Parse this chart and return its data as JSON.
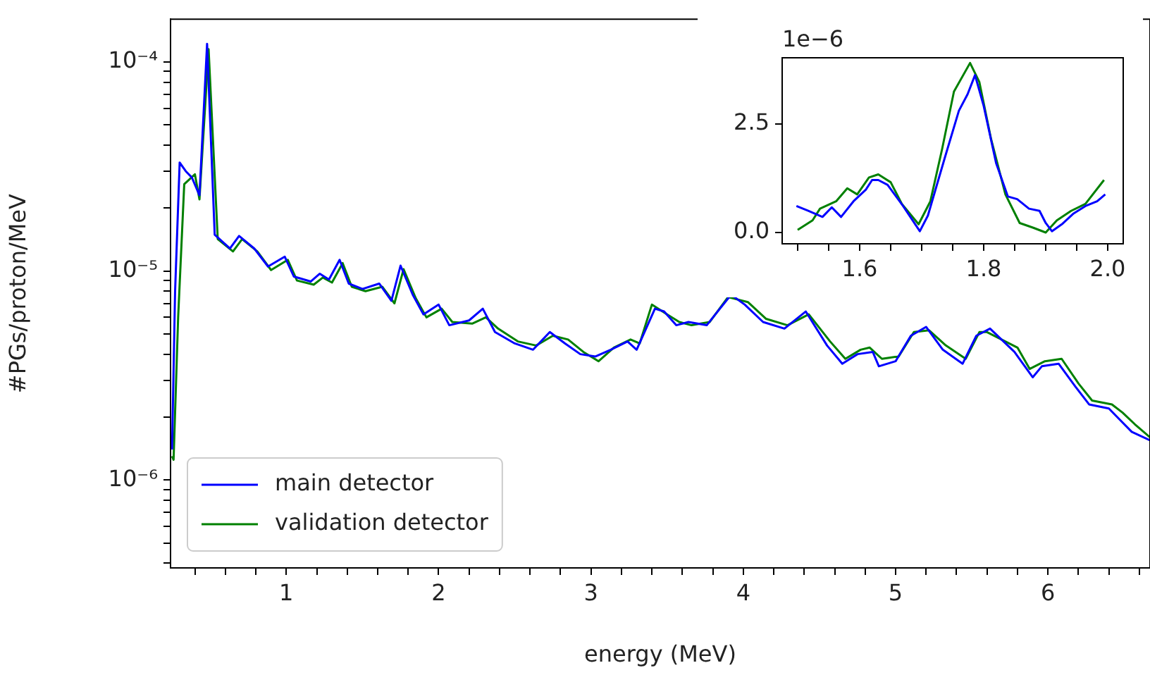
{
  "chart_data": [
    {
      "type": "line",
      "xlabel": "energy (MeV)",
      "ylabel": "#PGs/proton/MeV",
      "log": "y",
      "legend": "bottom left",
      "xlim": [
        0.24,
        6.67
      ],
      "ylim": [
        3.8e-07,
        0.00016
      ],
      "xticks": [
        {
          "value": 0.4,
          "label": null
        },
        {
          "value": 0.6,
          "label": null
        },
        {
          "value": 0.8,
          "label": null
        },
        1,
        {
          "value": 1.2,
          "label": null
        },
        {
          "value": 1.4,
          "label": null
        },
        {
          "value": 1.6,
          "label": null
        },
        {
          "value": 1.8,
          "label": null
        },
        2,
        {
          "value": 2.2,
          "label": null
        },
        {
          "value": 2.4,
          "label": null
        },
        {
          "value": 2.6,
          "label": null
        },
        {
          "value": 2.8,
          "label": null
        },
        3,
        {
          "value": 3.2,
          "label": null
        },
        {
          "value": 3.4,
          "label": null
        },
        {
          "value": 3.6,
          "label": null
        },
        {
          "value": 3.8,
          "label": null
        },
        4,
        {
          "value": 4.2,
          "label": null
        },
        {
          "value": 4.4,
          "label": null
        },
        {
          "value": 4.6,
          "label": null
        },
        {
          "value": 4.8,
          "label": null
        },
        5,
        {
          "value": 5.2,
          "label": null
        },
        {
          "value": 5.4,
          "label": null
        },
        {
          "value": 5.6,
          "label": null
        },
        {
          "value": 5.8,
          "label": null
        },
        6,
        {
          "value": 6.2,
          "label": null
        },
        {
          "value": 6.4,
          "label": null
        },
        {
          "value": 6.6,
          "label": null
        }
      ],
      "yticks": [
        {
          "value": 4e-07,
          "label": null
        },
        {
          "value": 5e-07,
          "label": null
        },
        {
          "value": 6e-07,
          "label": null
        },
        {
          "value": 7e-07,
          "label": null
        },
        {
          "value": 8e-07,
          "label": null
        },
        {
          "value": 9e-07,
          "label": null
        },
        {
          "value": 1e-06,
          "label": "10⁻⁶"
        },
        {
          "value": 2e-06,
          "label": null
        },
        {
          "value": 3e-06,
          "label": null
        },
        {
          "value": 4e-06,
          "label": null
        },
        {
          "value": 5e-06,
          "label": null
        },
        {
          "value": 6e-06,
          "label": null
        },
        {
          "value": 7e-06,
          "label": null
        },
        {
          "value": 8e-06,
          "label": null
        },
        {
          "value": 9e-06,
          "label": null
        },
        {
          "value": 1e-05,
          "label": "10⁻⁵"
        },
        {
          "value": 2e-05,
          "label": null
        },
        {
          "value": 3e-05,
          "label": null
        },
        {
          "value": 4e-05,
          "label": null
        },
        {
          "value": 5e-05,
          "label": null
        },
        {
          "value": 6e-05,
          "label": null
        },
        {
          "value": 7e-05,
          "label": null
        },
        {
          "value": 8e-05,
          "label": null
        },
        {
          "value": 9e-05,
          "label": null
        },
        {
          "value": 0.0001,
          "label": "10⁻⁴"
        }
      ],
      "series": [
        {
          "name": "main detector",
          "color": "#0000ff",
          "x": [
            0.25,
            0.27,
            0.3,
            0.34,
            0.38,
            0.43,
            0.48,
            0.53,
            0.63,
            0.69,
            0.79,
            0.88,
            0.99,
            1.05,
            1.16,
            1.22,
            1.28,
            1.35,
            1.41,
            1.5,
            1.61,
            1.69,
            1.75,
            1.83,
            1.9,
            2.0,
            2.07,
            2.2,
            2.29,
            2.37,
            2.5,
            2.62,
            2.73,
            2.83,
            2.93,
            3.03,
            3.13,
            3.24,
            3.3,
            3.42,
            3.48,
            3.56,
            3.64,
            3.76,
            3.92,
            4.01,
            4.13,
            4.27,
            4.41,
            4.55,
            4.65,
            4.75,
            4.85,
            4.89,
            5.0,
            5.1,
            5.2,
            5.31,
            5.44,
            5.53,
            5.62,
            5.78,
            5.9,
            5.96,
            6.07,
            6.18,
            6.27,
            6.4,
            6.47,
            6.55,
            6.67
          ],
          "values": [
            1.4e-06,
            8e-06,
            3.3e-05,
            3e-05,
            2.8e-05,
            2.3e-05,
            0.000122,
            1.49e-05,
            1.28e-05,
            1.47e-05,
            1.28e-05,
            1.05e-05,
            1.17e-05,
            9.4e-06,
            8.9e-06,
            9.7e-06,
            9.1e-06,
            1.13e-05,
            8.7e-06,
            8.2e-06,
            8.7e-06,
            7.2e-06,
            1.06e-05,
            7.7e-06,
            6.2e-06,
            6.9e-06,
            5.5e-06,
            5.8e-06,
            6.6e-06,
            5.1e-06,
            4.5e-06,
            4.2e-06,
            5.1e-06,
            4.5e-06,
            4e-06,
            3.9e-06,
            4.2e-06,
            4.6e-06,
            4.2e-06,
            6.6e-06,
            6.4e-06,
            5.5e-06,
            5.7e-06,
            5.5e-06,
            7.7e-06,
            6.9e-06,
            5.7e-06,
            5.3e-06,
            6.4e-06,
            4.4e-06,
            3.6e-06,
            4e-06,
            4.1e-06,
            3.5e-06,
            3.7e-06,
            4.9e-06,
            5.4e-06,
            4.2e-06,
            3.6e-06,
            4.9e-06,
            5.3e-06,
            4.1e-06,
            3.1e-06,
            3.5e-06,
            3.6e-06,
            2.8e-06,
            2.3e-06,
            2.2e-06,
            1.95e-06,
            1.7e-06,
            1.55e-06
          ]
        },
        {
          "name": "validation detector",
          "color": "#008000",
          "x": [
            0.25,
            0.26,
            0.29,
            0.33,
            0.4,
            0.43,
            0.49,
            0.55,
            0.65,
            0.71,
            0.81,
            0.9,
            1.01,
            1.07,
            1.18,
            1.24,
            1.3,
            1.37,
            1.43,
            1.52,
            1.63,
            1.71,
            1.77,
            1.85,
            1.92,
            2.02,
            2.09,
            2.22,
            2.31,
            2.39,
            2.52,
            2.64,
            2.75,
            2.85,
            2.95,
            3.05,
            3.15,
            3.26,
            3.32,
            3.4,
            3.5,
            3.58,
            3.66,
            3.78,
            3.9,
            4.03,
            4.15,
            4.29,
            4.43,
            4.57,
            4.67,
            4.77,
            4.83,
            4.91,
            5.02,
            5.12,
            5.22,
            5.33,
            5.46,
            5.55,
            5.6,
            5.8,
            5.88,
            5.98,
            6.09,
            6.2,
            6.29,
            6.42,
            6.49,
            6.57,
            6.67
          ],
          "values": [
            1.3e-06,
            1.25e-06,
            6e-06,
            2.6e-05,
            2.9e-05,
            2.2e-05,
            0.000115,
            1.42e-05,
            1.24e-05,
            1.42e-05,
            1.24e-05,
            1.01e-05,
            1.13e-05,
            9e-06,
            8.6e-06,
            9.3e-06,
            8.8e-06,
            1.09e-05,
            8.4e-06,
            8e-06,
            8.4e-06,
            7e-06,
            1.02e-05,
            7.4e-06,
            6e-06,
            6.6e-06,
            5.7e-06,
            5.6e-06,
            6e-06,
            5.3e-06,
            4.6e-06,
            4.4e-06,
            4.9e-06,
            4.7e-06,
            4.1e-06,
            3.7e-06,
            4.3e-06,
            4.7e-06,
            4.5e-06,
            6.9e-06,
            6.2e-06,
            5.7e-06,
            5.5e-06,
            5.7e-06,
            7.5e-06,
            7.1e-06,
            5.9e-06,
            5.5e-06,
            6.2e-06,
            4.6e-06,
            3.8e-06,
            4.2e-06,
            4.3e-06,
            3.8e-06,
            3.9e-06,
            5.1e-06,
            5.2e-06,
            4.4e-06,
            3.8e-06,
            5.1e-06,
            5.1e-06,
            4.3e-06,
            3.4e-06,
            3.7e-06,
            3.8e-06,
            2.9e-06,
            2.4e-06,
            2.3e-06,
            2.1e-06,
            1.85e-06,
            1.6e-06
          ]
        }
      ]
    },
    {
      "type": "line",
      "annotations": [
        "1e−6"
      ],
      "xlim": [
        1.475,
        2.025
      ],
      "ylim": [
        -0.26,
        4.03
      ],
      "xticks": [
        {
          "value": 1.5,
          "label": null
        },
        {
          "value": 1.55,
          "label": null
        },
        1.6,
        {
          "value": 1.65,
          "label": null
        },
        {
          "value": 1.7,
          "label": null
        },
        {
          "value": 1.75,
          "label": null
        },
        1.8,
        {
          "value": 1.85,
          "label": null
        },
        {
          "value": 1.9,
          "label": null
        },
        {
          "value": 1.95,
          "label": null
        },
        {
          "value": 2.0,
          "label": "2.0"
        }
      ],
      "yticks": [
        {
          "value": 0,
          "label": "0.0"
        },
        2.5
      ],
      "series": [
        {
          "color": "#0000ff",
          "x": [
            1.498,
            1.517,
            1.54,
            1.555,
            1.57,
            1.59,
            1.61,
            1.62,
            1.63,
            1.645,
            1.67,
            1.683,
            1.697,
            1.71,
            1.737,
            1.76,
            1.774,
            1.786,
            1.8,
            1.82,
            1.839,
            1.854,
            1.873,
            1.89,
            1.9,
            1.91,
            1.926,
            1.945,
            1.964,
            1.983,
            1.996
          ],
          "values": [
            0.61,
            0.5,
            0.36,
            0.58,
            0.36,
            0.72,
            0.99,
            1.21,
            1.21,
            1.1,
            0.61,
            0.33,
            0.03,
            0.39,
            1.71,
            2.81,
            3.19,
            3.63,
            2.92,
            1.6,
            0.83,
            0.77,
            0.55,
            0.5,
            0.22,
            0.03,
            0.19,
            0.44,
            0.61,
            0.72,
            0.88
          ]
        },
        {
          "color": "#008000",
          "x": [
            1.5,
            1.524,
            1.536,
            1.562,
            1.58,
            1.596,
            1.615,
            1.63,
            1.65,
            1.668,
            1.695,
            1.714,
            1.733,
            1.752,
            1.778,
            1.793,
            1.812,
            1.835,
            1.858,
            1.88,
            1.9,
            1.918,
            1.941,
            1.964,
            1.994
          ],
          "values": [
            0.06,
            0.28,
            0.55,
            0.72,
            1.02,
            0.88,
            1.27,
            1.34,
            1.16,
            0.66,
            0.19,
            0.72,
            1.93,
            3.25,
            3.91,
            3.47,
            2.15,
            0.88,
            0.22,
            0.11,
            0.0,
            0.28,
            0.5,
            0.66,
            1.21
          ]
        }
      ]
    }
  ]
}
